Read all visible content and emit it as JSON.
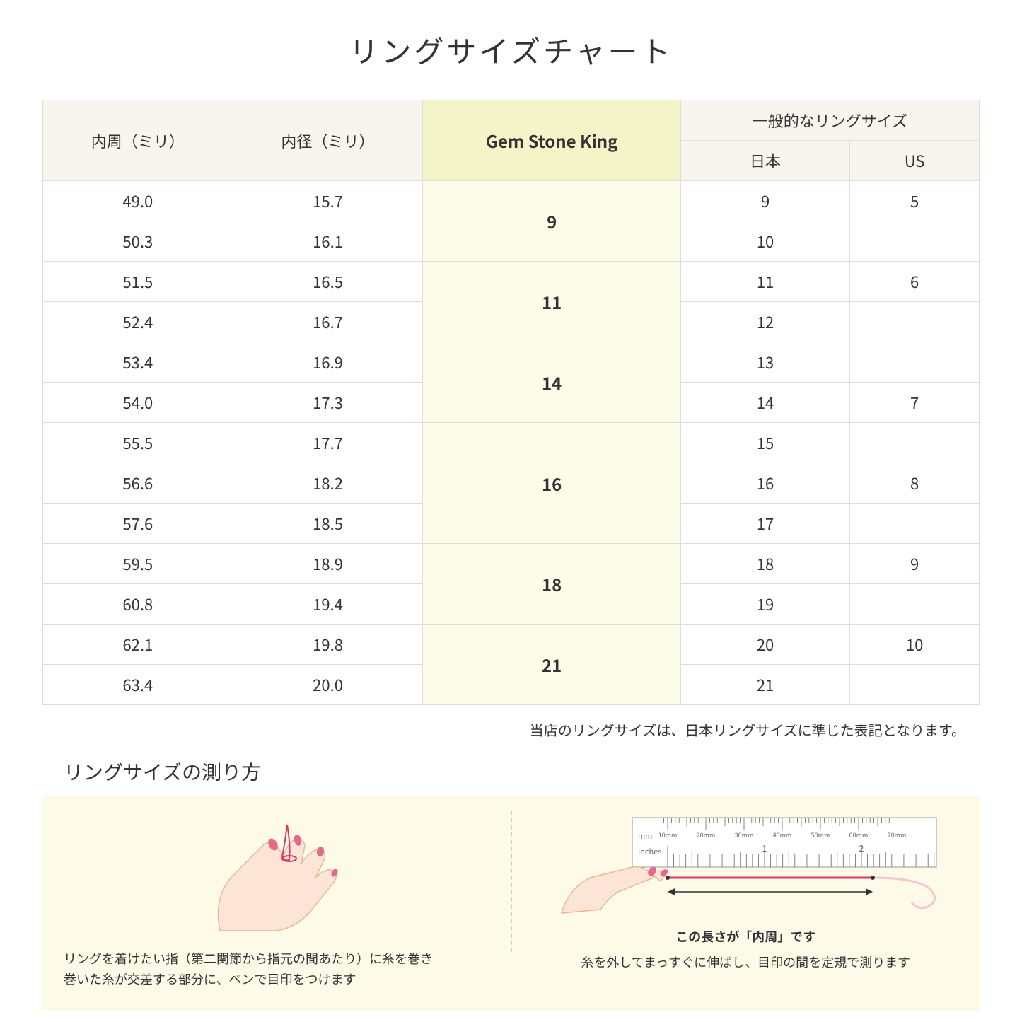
{
  "title": "リングサイズチャート",
  "table": {
    "headers": {
      "circumference": "内周（ミリ）",
      "diameter": "内径（ミリ）",
      "gsk": "Gem Stone King",
      "general": "一般的なリングサイズ",
      "japan": "日本",
      "us": "US"
    },
    "groups": [
      {
        "gsk": "9",
        "rows": [
          {
            "circ": "49.0",
            "dia": "15.7",
            "jp": "9",
            "us": "5"
          },
          {
            "circ": "50.3",
            "dia": "16.1",
            "jp": "10",
            "us": ""
          }
        ]
      },
      {
        "gsk": "11",
        "rows": [
          {
            "circ": "51.5",
            "dia": "16.5",
            "jp": "11",
            "us": "6"
          },
          {
            "circ": "52.4",
            "dia": "16.7",
            "jp": "12",
            "us": ""
          }
        ]
      },
      {
        "gsk": "14",
        "rows": [
          {
            "circ": "53.4",
            "dia": "16.9",
            "jp": "13",
            "us": ""
          },
          {
            "circ": "54.0",
            "dia": "17.3",
            "jp": "14",
            "us": "7"
          }
        ]
      },
      {
        "gsk": "16",
        "rows": [
          {
            "circ": "55.5",
            "dia": "17.7",
            "jp": "15",
            "us": ""
          },
          {
            "circ": "56.6",
            "dia": "18.2",
            "jp": "16",
            "us": "8"
          },
          {
            "circ": "57.6",
            "dia": "18.5",
            "jp": "17",
            "us": ""
          }
        ]
      },
      {
        "gsk": "18",
        "rows": [
          {
            "circ": "59.5",
            "dia": "18.9",
            "jp": "18",
            "us": "9"
          },
          {
            "circ": "60.8",
            "dia": "19.4",
            "jp": "19",
            "us": ""
          }
        ]
      },
      {
        "gsk": "21",
        "rows": [
          {
            "circ": "62.1",
            "dia": "19.8",
            "jp": "20",
            "us": "10"
          },
          {
            "circ": "63.4",
            "dia": "20.0",
            "jp": "21",
            "us": ""
          }
        ]
      }
    ]
  },
  "note": "当店のリングサイズは、日本リングサイズに準じた表記となります。",
  "howto": {
    "title": "リングサイズの測り方",
    "left_text": "リングを着けたい指（第二関節から指元の間あたり）に糸を巻き\n巻いた糸が交差する部分に、ペンで目印をつけます",
    "right_label": "この長さが「内周」です",
    "right_text": "糸を外してまっすぐに伸ばし、目印の間を定規で測ります",
    "ruler": {
      "mm_label": "mm",
      "inches_label": "Inches",
      "mm_ticks": [
        "10mm",
        "20mm",
        "30mm",
        "40mm",
        "50mm",
        "60mm",
        "70mm"
      ],
      "inch_ticks": [
        "1",
        "2"
      ]
    }
  },
  "colors": {
    "header_bg": "#f7f5ed",
    "gsk_header_bg": "#f5f3c8",
    "gsk_cell_bg": "#fdfce8",
    "howto_bg": "#fdfbe8",
    "hand_skin": "#fce4d6",
    "hand_outline": "#e8b896",
    "nail": "#e6698a",
    "thread": "#d93b5b",
    "border": "#dddddd"
  }
}
